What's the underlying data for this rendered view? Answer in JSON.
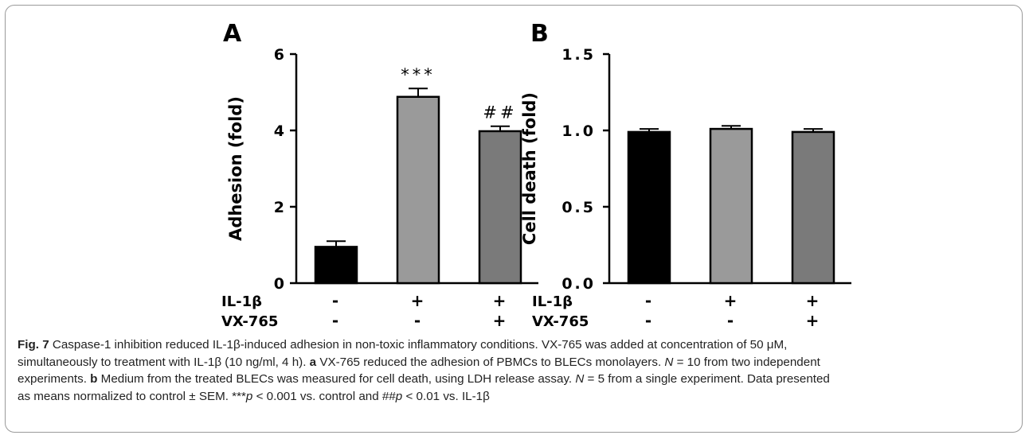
{
  "chart_data": [
    {
      "type": "bar",
      "panel_label": "A",
      "ylabel": "Adhesion (fold)",
      "ylim": [
        0,
        6
      ],
      "yticks": [
        "0",
        "2",
        "4",
        "6"
      ],
      "categories": [
        "Control",
        "IL-1β",
        "IL-1β + VX-765"
      ],
      "values": [
        0.95,
        4.88,
        3.98
      ],
      "errors": [
        0.15,
        0.22,
        0.13
      ],
      "colors": [
        "#000000",
        "#9a9a9a",
        "#7a7a7a"
      ],
      "annotations": [
        "",
        "***",
        "##"
      ],
      "treatments": [
        {
          "name": "IL-1β",
          "marks": [
            "-",
            "+",
            "+"
          ]
        },
        {
          "name": "VX-765",
          "marks": [
            "-",
            "-",
            "+"
          ]
        }
      ]
    },
    {
      "type": "bar",
      "panel_label": "B",
      "ylabel": "Cell death (fold)",
      "ylim": [
        0,
        1.5
      ],
      "yticks": [
        "0.0",
        "0.5",
        "1.0",
        "1.5"
      ],
      "categories": [
        "Control",
        "IL-1β",
        "IL-1β + VX-765"
      ],
      "values": [
        0.99,
        1.01,
        0.99
      ],
      "errors": [
        0.02,
        0.02,
        0.02
      ],
      "colors": [
        "#000000",
        "#9a9a9a",
        "#7a7a7a"
      ],
      "annotations": [
        "",
        "",
        ""
      ],
      "treatments": [
        {
          "name": "IL-1β",
          "marks": [
            "-",
            "+",
            "+"
          ]
        },
        {
          "name": "VX-765",
          "marks": [
            "-",
            "-",
            "+"
          ]
        }
      ]
    }
  ],
  "caption": {
    "fig_label": "Fig. 7",
    "line1": " Caspase-1 inhibition reduced IL-1β-induced adhesion in non-toxic inflammatory conditions. VX-765 was added at concentration of 50 μM,",
    "line2a": "simultaneously to treatment with IL-1β (10 ng/ml, 4 h). ",
    "a_label": "a",
    "line2b": " VX-765 reduced the adhesion of PBMCs to BLECs monolayers. ",
    "n_italic": "N",
    "line2c": " = 10 from two independent",
    "line3a": "experiments. ",
    "b_label": "b",
    "line3b": " Medium from the treated BLECs was measured for cell death, using LDH release assay. ",
    "line3c": " = 5 from a single experiment. Data presented",
    "line4a": "as means normalized to control ± SEM. ***",
    "p_italic": "p",
    "line4b": " < 0.001 vs. control and ##",
    "line4c": " < 0.01 vs. IL-1β"
  }
}
